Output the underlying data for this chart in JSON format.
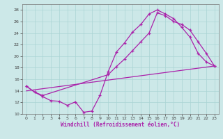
{
  "xlabel": "Windchill (Refroidissement éolien,°C)",
  "xlim": [
    -0.5,
    23.5
  ],
  "ylim": [
    10,
    29
  ],
  "yticks": [
    10,
    12,
    14,
    16,
    18,
    20,
    22,
    24,
    26,
    28
  ],
  "xticks": [
    0,
    1,
    2,
    3,
    4,
    5,
    6,
    7,
    8,
    9,
    10,
    11,
    12,
    13,
    14,
    15,
    16,
    17,
    18,
    19,
    20,
    21,
    22,
    23
  ],
  "bg_color": "#cce8e8",
  "grid_color": "#aad4d4",
  "line_color": "#aa22aa",
  "line1_x": [
    0,
    1,
    2,
    3,
    4,
    5,
    6,
    7,
    8,
    9,
    10,
    11,
    12,
    13,
    14,
    15,
    16,
    17,
    18,
    19,
    20,
    21,
    22,
    23
  ],
  "line1_y": [
    14.8,
    13.8,
    13.0,
    12.3,
    12.2,
    11.5,
    12.1,
    10.3,
    10.5,
    13.2,
    17.3,
    20.7,
    22.3,
    24.2,
    25.5,
    27.3,
    28.0,
    27.3,
    26.5,
    25.0,
    23.3,
    20.5,
    19.0,
    18.3
  ],
  "line2_x": [
    0,
    1,
    2,
    10,
    11,
    12,
    13,
    14,
    15,
    16,
    17,
    18,
    19,
    20,
    21,
    22,
    23
  ],
  "line2_y": [
    14.8,
    13.8,
    13.2,
    16.8,
    18.2,
    19.5,
    21.0,
    22.5,
    24.0,
    27.5,
    27.0,
    26.0,
    25.5,
    24.5,
    22.5,
    20.5,
    18.3
  ],
  "line3_x": [
    0,
    23
  ],
  "line3_y": [
    14.0,
    18.3
  ]
}
